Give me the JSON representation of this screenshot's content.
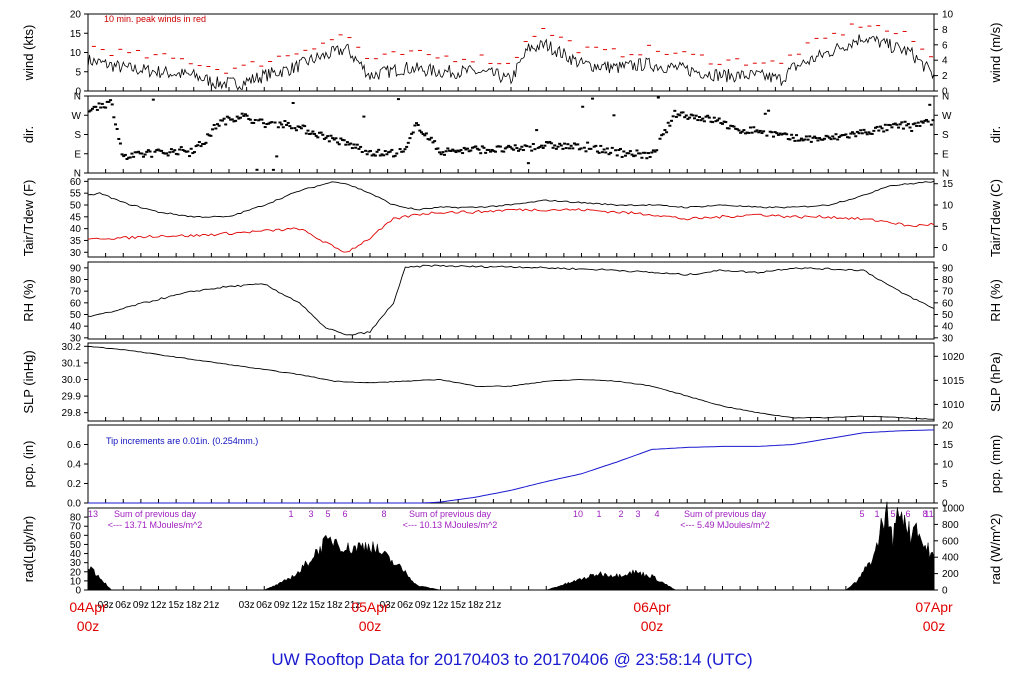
{
  "colors": {
    "wind_peak": "#e00000",
    "tdew": "#e00000",
    "precip": "#1a1ad0",
    "radiation_annotation": "#a020c0",
    "date_labels": "#e00000",
    "footer": "#1a1ad0"
  },
  "footer": "UW Rooftop Data for 20170403  to  20170406 @ 23:58:14  (UTC)",
  "x_axis": {
    "start": "04Apr 00z",
    "end": "07Apr 00z",
    "hour_ticks": [
      "03z",
      "06z",
      "09z",
      "12z",
      "15z",
      "18z",
      "21z",
      "03z",
      "06z",
      "09z",
      "12z",
      "15z",
      "18z",
      "21z",
      "03z",
      "06z",
      "09z",
      "12z",
      "15z",
      "18z",
      "21z"
    ],
    "date_labels": [
      {
        "day": "04Apr",
        "hour": "00z"
      },
      {
        "day": "05Apr",
        "hour": "00z"
      },
      {
        "day": "06Apr",
        "hour": "00z"
      },
      {
        "day": "07Apr",
        "hour": "00z"
      }
    ]
  },
  "chart_data": [
    {
      "type": "line",
      "ylabel_left": "wind (kts)",
      "ylabel_right": "wind (m/s)",
      "ylim_left": [
        0,
        20
      ],
      "yticks_left": [
        "0",
        "5",
        "10",
        "15",
        "20"
      ],
      "yticks_right": [
        "0",
        "2",
        "4",
        "6",
        "8",
        "10"
      ],
      "annotation": "10 min. peak winds in red",
      "x_hours": [
        0,
        6,
        12,
        18,
        22,
        26,
        30,
        35,
        38,
        44,
        48,
        54,
        60,
        66,
        70,
        71,
        72,
        75,
        78,
        84,
        90,
        95,
        100,
        108,
        114,
        118,
        120,
        132,
        140,
        144
      ],
      "series": [
        {
          "values": [
            8,
            6,
            5,
            4,
            2,
            2,
            4,
            6,
            8,
            11,
            4,
            6,
            5,
            5,
            4,
            3,
            3,
            11,
            12,
            7,
            6,
            7,
            6,
            4,
            4,
            3,
            6,
            14,
            10,
            4
          ]
        }
      ]
    },
    {
      "type": "scatter",
      "ylabel_left": "dir.",
      "ylabel_right": "dir.",
      "yticks_left": [
        "N",
        "E",
        "S",
        "W",
        "N"
      ],
      "yticks_right": [
        "N",
        "E",
        "S",
        "W",
        "N"
      ],
      "x_hours": [
        0,
        4,
        6,
        10,
        14,
        18,
        20,
        22,
        26,
        30,
        34,
        48,
        50,
        54,
        56,
        60,
        66,
        72,
        78,
        84,
        90,
        96,
        100,
        108,
        110,
        114,
        120,
        126,
        132,
        138,
        144
      ],
      "series": [
        {
          "values": [
            300,
            330,
            70,
            90,
            100,
            110,
            150,
            230,
            270,
            230,
            230,
            100,
            90,
            100,
            230,
            100,
            110,
            110,
            130,
            120,
            100,
            80,
            280,
            240,
            200,
            200,
            160,
            160,
            190,
            220,
            240
          ]
        }
      ]
    },
    {
      "type": "line",
      "ylabel_left": "Tair/Tdew (F)",
      "ylabel_right": "Tair/Tdew (C)",
      "ylim_left": [
        28,
        61
      ],
      "yticks_left": [
        "30",
        "35",
        "40",
        "45",
        "50",
        "55",
        "60"
      ],
      "yticks_right": [
        "0",
        "5",
        "10",
        "15"
      ],
      "x_hours": [
        0,
        2,
        6,
        12,
        18,
        24,
        30,
        36,
        42,
        44,
        48,
        52,
        56,
        60,
        66,
        72,
        78,
        84,
        90,
        96,
        102,
        108,
        114,
        120,
        126,
        132,
        136,
        140,
        144
      ],
      "series": [
        {
          "name": "Tair",
          "values": [
            54,
            55,
            51,
            47,
            45,
            45,
            50,
            56,
            60,
            59,
            55,
            50,
            48,
            49,
            49,
            50,
            52,
            51,
            50,
            50,
            49,
            50,
            49,
            49,
            50,
            54,
            58,
            59,
            60
          ]
        },
        {
          "name": "Tdew",
          "values": [
            35,
            36,
            36,
            37,
            37,
            38,
            39,
            40,
            32,
            30,
            36,
            44,
            46,
            47,
            47,
            48,
            48,
            48,
            47,
            46,
            44,
            45,
            46,
            45,
            45,
            44,
            43,
            41,
            42
          ]
        }
      ]
    },
    {
      "type": "line",
      "ylabel_left": "RH (%)",
      "ylabel_right": "RH (%)",
      "ylim_left": [
        29,
        95
      ],
      "yticks_left": [
        "30",
        "40",
        "50",
        "60",
        "70",
        "80",
        "90"
      ],
      "yticks_right": [
        "30",
        "40",
        "50",
        "60",
        "70",
        "80",
        "90"
      ],
      "x_hours": [
        0,
        4,
        8,
        12,
        18,
        24,
        30,
        36,
        40,
        44,
        48,
        52,
        54,
        58,
        66,
        72,
        78,
        84,
        90,
        96,
        102,
        108,
        114,
        120,
        126,
        132,
        138,
        144
      ],
      "series": [
        {
          "values": [
            48,
            52,
            58,
            63,
            70,
            74,
            76,
            60,
            40,
            32,
            35,
            60,
            90,
            92,
            91,
            91,
            90,
            89,
            88,
            86,
            84,
            88,
            86,
            90,
            89,
            88,
            70,
            55
          ]
        }
      ]
    },
    {
      "type": "line",
      "ylabel_left": "SLP (inHg)",
      "ylabel_right": "SLP (hPa)",
      "ylim_left": [
        29.75,
        30.22
      ],
      "yticks_left": [
        "29.8",
        "29.9",
        "30.0",
        "30.1",
        "30.2"
      ],
      "yticks_right": [
        "1010",
        "1015",
        "1020"
      ],
      "x_hours": [
        0,
        6,
        12,
        18,
        24,
        30,
        36,
        42,
        48,
        54,
        60,
        66,
        72,
        78,
        84,
        90,
        96,
        102,
        108,
        114,
        120,
        126,
        132,
        138,
        144
      ],
      "series": [
        {
          "values": [
            30.2,
            30.18,
            30.15,
            30.12,
            30.09,
            30.06,
            30.03,
            29.99,
            29.98,
            29.99,
            30.0,
            29.96,
            29.96,
            29.99,
            30.0,
            29.99,
            29.96,
            29.9,
            29.84,
            29.8,
            29.77,
            29.77,
            29.78,
            29.77,
            29.76
          ]
        }
      ]
    },
    {
      "type": "area",
      "ylabel_left": "pcp. (in)",
      "ylabel_right": "pcp. (mm)",
      "ylim_left": [
        0,
        0.8
      ],
      "yticks_left": [
        "0.0",
        "0.2",
        "0.4",
        "0.6"
      ],
      "yticks_right": [
        "0",
        "5",
        "10",
        "15",
        "20"
      ],
      "annotation": "Tip increments are 0.01in. (0.254mm.)",
      "x_hours": [
        0,
        57,
        60,
        66,
        72,
        78,
        84,
        90,
        96,
        102,
        108,
        114,
        120,
        126,
        132,
        138,
        144
      ],
      "series": [
        {
          "values": [
            0,
            0,
            0.01,
            0.06,
            0.13,
            0.22,
            0.3,
            0.42,
            0.55,
            0.57,
            0.58,
            0.58,
            0.6,
            0.66,
            0.72,
            0.74,
            0.75
          ]
        }
      ]
    },
    {
      "type": "area",
      "ylabel_left": "rad(Lgly/hr)",
      "ylabel_right": "rad (W/m^2)",
      "ylim_left": [
        0,
        90
      ],
      "yticks_left": [
        "0",
        "10",
        "20",
        "30",
        "40",
        "50",
        "60",
        "70",
        "80"
      ],
      "yticks_right": [
        "0",
        "200",
        "400",
        "600",
        "800",
        "1000"
      ],
      "day_summaries": [
        {
          "label": "Sum of previous day",
          "value": "<--- 13.71 MJoules/m^2"
        },
        {
          "label": "Sum of previous day",
          "value": "<--- 10.13 MJoules/m^2"
        },
        {
          "label": "Sum of previous day",
          "value": "<--- 5.49 MJoules/m^2"
        }
      ],
      "local_hour_marks": [
        "13",
        "1",
        "3",
        "5",
        "6",
        "8",
        "10",
        "1",
        "2",
        "3",
        "4",
        "5",
        "1",
        "5",
        "6",
        "8",
        "11"
      ],
      "x_hours": [
        0,
        4,
        30,
        33,
        36,
        38,
        40,
        42,
        44,
        48,
        50,
        52,
        54,
        56,
        60,
        78,
        81,
        84,
        87,
        90,
        93,
        96,
        100,
        102,
        104,
        106,
        108,
        126,
        129,
        130,
        131,
        132,
        133,
        134,
        135,
        136,
        137,
        138,
        139,
        140,
        141,
        142,
        143,
        144
      ],
      "series": [
        {
          "values": [
            28,
            0,
            0,
            8,
            20,
            35,
            50,
            56,
            45,
            50,
            40,
            30,
            20,
            5,
            0,
            0,
            6,
            12,
            18,
            16,
            20,
            15,
            0,
            0,
            0,
            0,
            0,
            0,
            0,
            5,
            10,
            20,
            30,
            40,
            70,
            85,
            55,
            90,
            80,
            60,
            75,
            50,
            45,
            35
          ]
        }
      ]
    }
  ]
}
